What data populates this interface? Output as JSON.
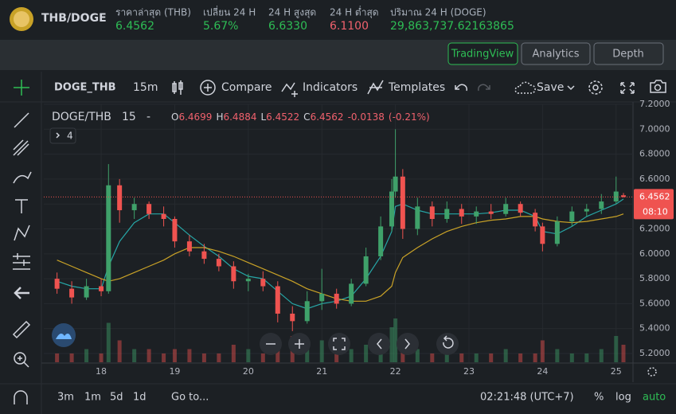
{
  "header": {
    "pair": "THB/DOGE",
    "stats": [
      {
        "label": "ราคาล่าสุด (THB)",
        "value": "6.4562",
        "tone": "up"
      },
      {
        "label": "เปลี่ยน 24 H",
        "value": "5.67%",
        "tone": "up"
      },
      {
        "label": "24 H สูงสุด",
        "value": "6.6330",
        "tone": "up"
      },
      {
        "label": "24 H ต่ำสุด",
        "value": "6.1100",
        "tone": "dn"
      },
      {
        "label": "ปริมาณ 24 H (DOGE)",
        "value": "29,863,737.62163865",
        "tone": "up"
      }
    ]
  },
  "tabs": [
    "TradingView",
    "Analytics",
    "Depth"
  ],
  "toolbar": {
    "symbol": "DOGE_THB",
    "interval": "15m",
    "compare": "Compare",
    "indicators": "Indicators",
    "templates": "Templates",
    "save": "Save"
  },
  "legend": {
    "symbol": "DOGE/THB",
    "interval": "15",
    "dash": "-",
    "open_label": "O",
    "high_label": "H",
    "low_label": "L",
    "close_label": "C",
    "change": "-0.0138",
    "change_pct": "(-0.21%)",
    "collapse": "4"
  },
  "countdown": "08:10",
  "bottom": {
    "ranges": [
      "3m",
      "1m",
      "5d",
      "1d"
    ],
    "goto": "Go to...",
    "clock": "02:21:48 (UTC+7)",
    "percent": "%",
    "log": "log",
    "auto": "auto"
  },
  "chart_data": {
    "type": "candlestick",
    "up_color": "#3fa16a",
    "down_color": "#ef5350",
    "grid": true,
    "xlim": [
      17.22,
      25.23
    ],
    "xticks": [
      18,
      19,
      20,
      21,
      22,
      23,
      24,
      25
    ],
    "ylim": [
      5.13,
      7.2
    ],
    "yticks": [
      {
        "value": 5.2,
        "label": "5.2000"
      },
      {
        "value": 5.4,
        "label": "5.4000"
      },
      {
        "value": 5.6,
        "label": "5.6000"
      },
      {
        "value": 5.8,
        "label": "5.8000"
      },
      {
        "value": 6.0,
        "label": "6.0000"
      },
      {
        "value": 6.2,
        "label": "6.2000"
      },
      {
        "value": 6.4,
        "label": "6.4000"
      },
      {
        "value": 6.6,
        "label": "6.6000"
      },
      {
        "value": 6.8,
        "label": "6.8000"
      },
      {
        "value": 7.0,
        "label": "7.0000"
      },
      {
        "value": 7.2,
        "label": "7.2000"
      }
    ],
    "x": [
      17.4,
      17.6,
      17.8,
      18.0,
      18.1,
      18.25,
      18.45,
      18.65,
      18.85,
      19.0,
      19.2,
      19.4,
      19.6,
      19.8,
      20.0,
      20.2,
      20.4,
      20.6,
      20.8,
      21.0,
      21.2,
      21.4,
      21.6,
      21.8,
      21.95,
      22.0,
      22.1,
      22.3,
      22.5,
      22.7,
      22.9,
      23.1,
      23.3,
      23.5,
      23.7,
      23.9,
      24.0,
      24.2,
      24.4,
      24.6,
      24.8,
      25.0,
      25.1
    ],
    "open": [
      5.8,
      5.72,
      5.65,
      5.74,
      5.7,
      6.55,
      6.35,
      6.4,
      6.32,
      6.28,
      6.1,
      6.02,
      5.96,
      5.9,
      5.78,
      5.8,
      5.74,
      5.52,
      5.46,
      5.62,
      5.68,
      5.6,
      5.76,
      5.98,
      6.22,
      6.5,
      6.62,
      6.2,
      6.38,
      6.28,
      6.36,
      6.3,
      6.34,
      6.32,
      6.4,
      6.33,
      6.22,
      6.08,
      6.26,
      6.34,
      6.36,
      6.42,
      6.4699
    ],
    "high": [
      5.85,
      5.78,
      5.8,
      5.8,
      6.72,
      6.6,
      6.45,
      6.42,
      6.38,
      6.3,
      6.15,
      6.08,
      6.0,
      5.94,
      5.84,
      5.86,
      5.78,
      5.58,
      5.7,
      5.88,
      5.72,
      5.8,
      6.05,
      6.3,
      6.6,
      7.0,
      6.68,
      6.45,
      6.42,
      6.42,
      6.4,
      6.38,
      6.4,
      6.45,
      6.42,
      6.36,
      6.25,
      6.3,
      6.38,
      6.4,
      6.48,
      6.62,
      6.4884
    ],
    "low": [
      5.68,
      5.6,
      5.63,
      5.66,
      5.68,
      6.25,
      6.28,
      6.28,
      6.22,
      6.05,
      5.98,
      5.92,
      5.86,
      5.72,
      5.7,
      5.7,
      5.45,
      5.38,
      5.44,
      5.55,
      5.56,
      5.58,
      5.74,
      5.95,
      6.18,
      6.45,
      6.12,
      6.15,
      6.22,
      6.25,
      6.24,
      6.24,
      6.28,
      6.3,
      6.3,
      6.18,
      6.02,
      6.06,
      6.22,
      6.3,
      6.32,
      6.4,
      6.4522
    ],
    "close": [
      5.72,
      5.65,
      5.74,
      5.7,
      6.55,
      6.35,
      6.4,
      6.32,
      6.28,
      6.1,
      6.02,
      5.96,
      5.9,
      5.78,
      5.8,
      5.74,
      5.52,
      5.46,
      5.62,
      5.68,
      5.6,
      5.76,
      5.98,
      6.22,
      6.5,
      6.62,
      6.2,
      6.38,
      6.28,
      6.36,
      6.3,
      6.34,
      6.32,
      6.4,
      6.33,
      6.22,
      6.08,
      6.26,
      6.34,
      6.36,
      6.42,
      6.5,
      6.4562
    ],
    "volume": [
      2,
      2,
      3,
      2,
      9,
      5,
      3,
      3,
      2,
      3,
      3,
      2,
      2,
      4,
      3,
      2,
      5,
      6,
      4,
      5,
      3,
      3,
      4,
      5,
      8,
      10,
      6,
      3,
      2,
      2,
      2,
      2,
      2,
      3,
      2,
      2,
      5,
      3,
      2,
      2,
      3,
      6,
      4
    ],
    "moving_averages": [
      {
        "color": "#26a6a6",
        "values": [
          5.78,
          5.74,
          5.72,
          5.72,
          5.9,
          6.1,
          6.25,
          6.32,
          6.32,
          6.25,
          6.15,
          6.06,
          5.98,
          5.88,
          5.82,
          5.8,
          5.7,
          5.6,
          5.56,
          5.6,
          5.62,
          5.66,
          5.8,
          5.98,
          6.18,
          6.38,
          6.4,
          6.35,
          6.32,
          6.32,
          6.32,
          6.32,
          6.33,
          6.35,
          6.35,
          6.3,
          6.18,
          6.16,
          6.22,
          6.3,
          6.35,
          6.4,
          6.44
        ]
      },
      {
        "color": "#c9a227",
        "values": [
          5.95,
          5.9,
          5.85,
          5.8,
          5.78,
          5.8,
          5.85,
          5.9,
          5.95,
          6.0,
          6.05,
          6.05,
          6.02,
          5.98,
          5.93,
          5.88,
          5.83,
          5.78,
          5.72,
          5.68,
          5.64,
          5.62,
          5.62,
          5.66,
          5.74,
          5.85,
          5.97,
          6.05,
          6.12,
          6.18,
          6.22,
          6.25,
          6.27,
          6.28,
          6.3,
          6.3,
          6.28,
          6.26,
          6.25,
          6.26,
          6.28,
          6.3,
          6.32
        ]
      }
    ]
  }
}
